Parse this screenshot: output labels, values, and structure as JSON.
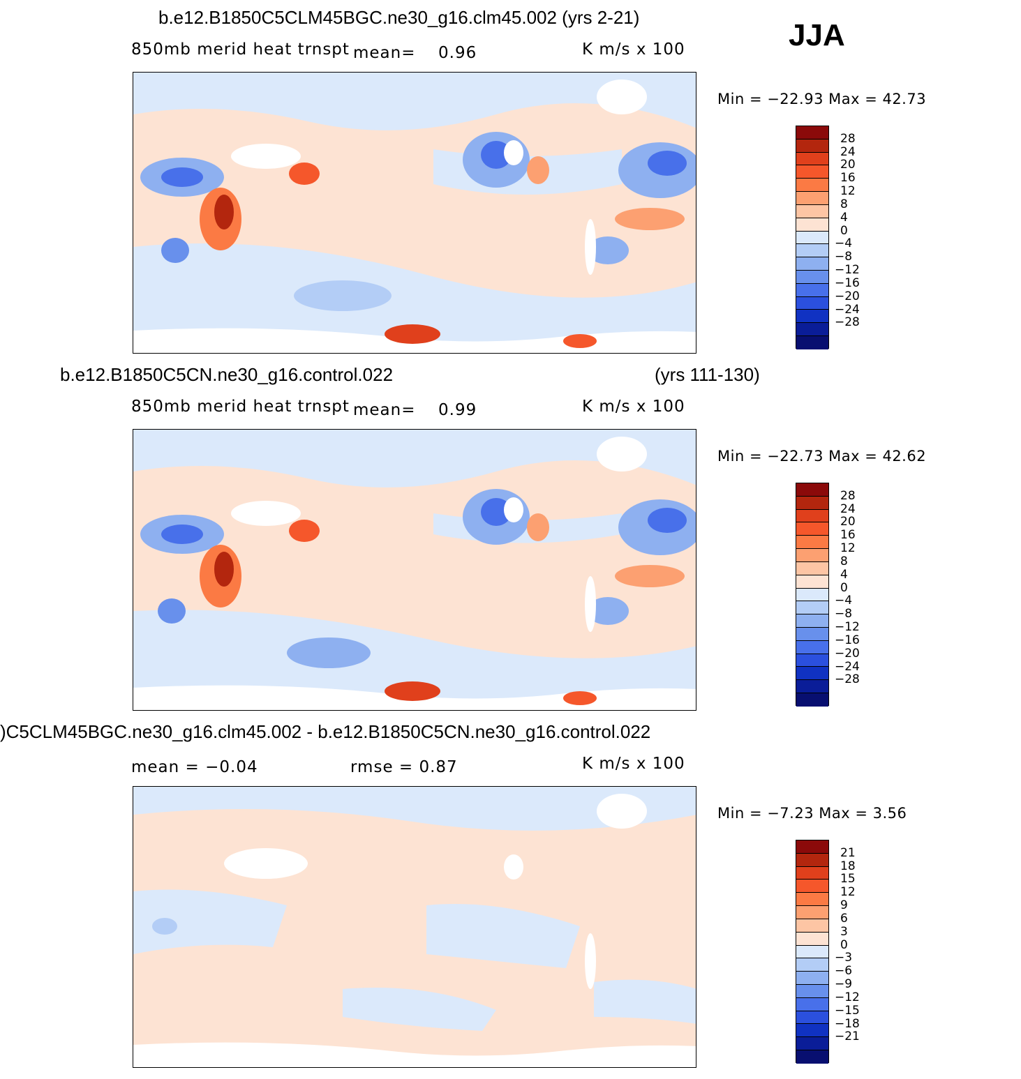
{
  "season": "JJA",
  "panels": [
    {
      "title": "b.e12.B1850C5CLM45BGC.ne30_g16.clm45.002 (yrs 2-21)",
      "variable": "850mb  merid  heat  trnspt",
      "mean_label": "mean=",
      "mean_value": "0.96",
      "units": "K  m/s  x  100",
      "minmax": "Min  =  −22.93  Max  =    42.73",
      "map_name": "panel-1-map"
    },
    {
      "title_left": "b.e12.B1850C5CN.ne30_g16.control.022",
      "title_right": "(yrs 111-130)",
      "variable": "850mb  merid  heat  trnspt",
      "mean_label": "mean=",
      "mean_value": "0.99",
      "units": "K  m/s  x  100",
      "minmax": "Min  =  −22.73  Max  =    42.62",
      "map_name": "panel-2-map"
    },
    {
      "title": ")C5CLM45BGC.ne30_g16.clm45.002 - b.e12.B1850C5CN.ne30_g16.control.022",
      "mean_text": "mean  =    −0.04",
      "rmse_text": "rmse  =     0.87",
      "units": "K  m/s  x  100",
      "minmax": "Min  =    −7.23  Max  =      3.56",
      "map_name": "panel-3-map"
    }
  ],
  "colorbars": {
    "colors": [
      "#8b0a0a",
      "#b3260e",
      "#e0401c",
      "#f5572b",
      "#fb7a44",
      "#fca071",
      "#fdc5a4",
      "#fde3d3",
      "#dbe9fb",
      "#b3cdf6",
      "#8eb0f0",
      "#6890ec",
      "#4870ea",
      "#2b50de",
      "#1032c2",
      "#0a1d98",
      "#080f70"
    ],
    "ticks_main": [
      "28",
      "24",
      "20",
      "16",
      "12",
      "8",
      "4",
      "0",
      "−4",
      "−8",
      "−12",
      "−16",
      "−20",
      "−24",
      "−28"
    ],
    "ticks_diff": [
      "21",
      "18",
      "15",
      "12",
      "9",
      "6",
      "3",
      "0",
      "−3",
      "−6",
      "−9",
      "−12",
      "−15",
      "−18",
      "−21"
    ]
  }
}
